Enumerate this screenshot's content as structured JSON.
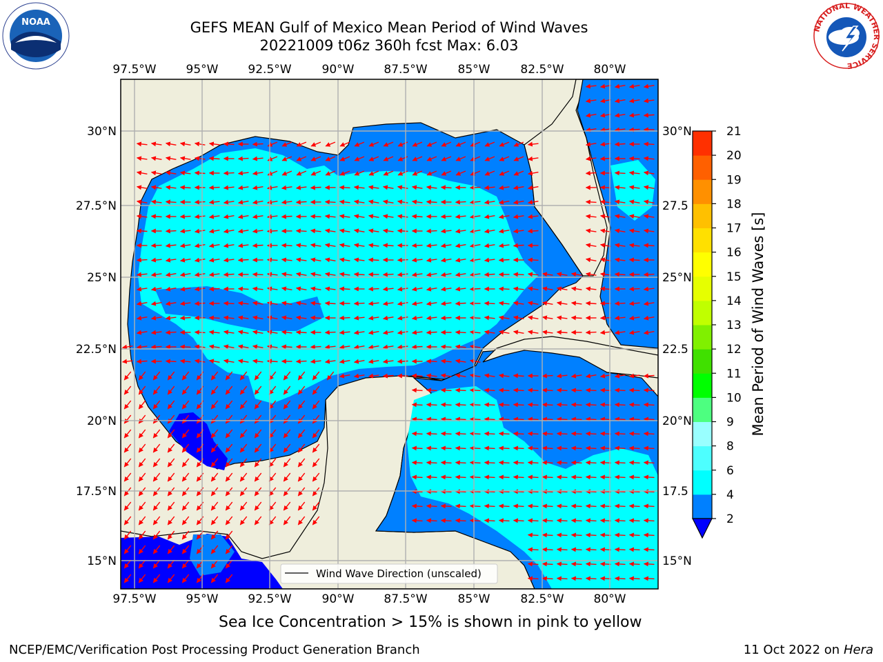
{
  "title_line1": "GEFS MEAN Gulf of Mexico Mean Period of Wind Waves",
  "title_line2": "20221009 t06z 360h fcst   Max: 6.03",
  "map": {
    "lon_ticks": [
      "97.5°W",
      "95°W",
      "92.5°W",
      "90°W",
      "87.5°W",
      "85°W",
      "82.5°W",
      "80°W"
    ],
    "lat_ticks_left": [
      "30°N",
      "27.5°N",
      "25°N",
      "22.5°N",
      "20°N",
      "17.5°N",
      "15°N"
    ],
    "lat_ticks_right": [
      "30°N",
      "27.5",
      "25°N",
      "22.5",
      "20°N",
      "17.5",
      "15°N"
    ],
    "legend_label": "Wind Wave Direction (unscaled)",
    "colors": {
      "land": "#efeedc",
      "level_2_4": "#0080ff",
      "level_4_6": "#00ffff",
      "below_2": "#0000ff",
      "arrow": "#ff0000"
    }
  },
  "colorbar": {
    "label": "Mean Period of Wind Waves [s]",
    "ticks": [
      "2",
      "4",
      "6",
      "8",
      "9",
      "10",
      "11",
      "12",
      "13",
      "14",
      "15",
      "16",
      "17",
      "18",
      "19",
      "20",
      "21"
    ],
    "colors": [
      "#0080ff",
      "#00ffff",
      "#4dffff",
      "#99ffff",
      "#4dff80",
      "#00ff00",
      "#40e000",
      "#80f000",
      "#c0ff00",
      "#e6ff00",
      "#ffff00",
      "#ffe000",
      "#ffc000",
      "#ff9000",
      "#ff6000",
      "#ff3000"
    ],
    "under_color": "#0000ff"
  },
  "subtitle": "Sea Ice Concentration > 15% is shown in pink to yellow",
  "footer_left": "NCEP/EMC/Verification Post Processing Product Generation Branch",
  "footer_date": "11 Oct 2022 on ",
  "footer_machine": "Hera",
  "logos": {
    "noaa_text": "NOAA",
    "nws_text": "NATIONAL WEATHER SERVICE"
  }
}
